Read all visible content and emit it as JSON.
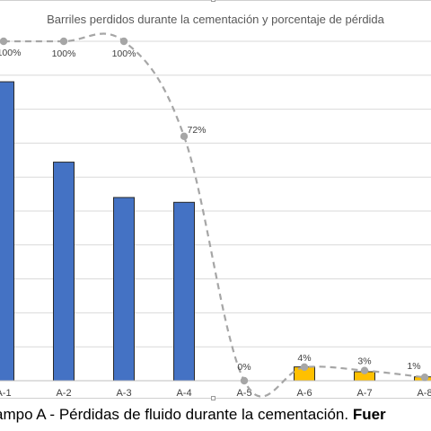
{
  "chart_data": {
    "type": "bar+line",
    "title": "Barriles perdidos durante la cementación y porcentaje de pérdida",
    "categories": [
      "A-1",
      "A-2",
      "A-3",
      "A-4",
      "A-5",
      "A-6",
      "A-7",
      "A-8"
    ],
    "bars": {
      "values": [
        93,
        68,
        57,
        55.5,
        0,
        4.3,
        2.8,
        1.2
      ],
      "colors": [
        "#4472c4",
        "#4472c4",
        "#4472c4",
        "#4472c4",
        "#ffc000",
        "#ffc000",
        "#ffc000",
        "#ffc000"
      ],
      "ylim": [
        0,
        100
      ]
    },
    "line": {
      "values": [
        100,
        100,
        100,
        72,
        0,
        4,
        3,
        1
      ],
      "labels": [
        "100%",
        "100%",
        "100%",
        "72%",
        "0%",
        "4%",
        "3%",
        "1%"
      ],
      "ylim": [
        0,
        100
      ],
      "color": "#a6a6a6",
      "style": "dashed"
    },
    "grid": true
  },
  "caption": {
    "text": "ampo A - Pérdidas de fluido durante la cementación.",
    "bold": "Fuer"
  },
  "colors": {
    "bar_outline": "#2a2a2a",
    "gridline": "#d9d9d9",
    "axis": "#bfbfbf",
    "label_text": "#404040"
  }
}
